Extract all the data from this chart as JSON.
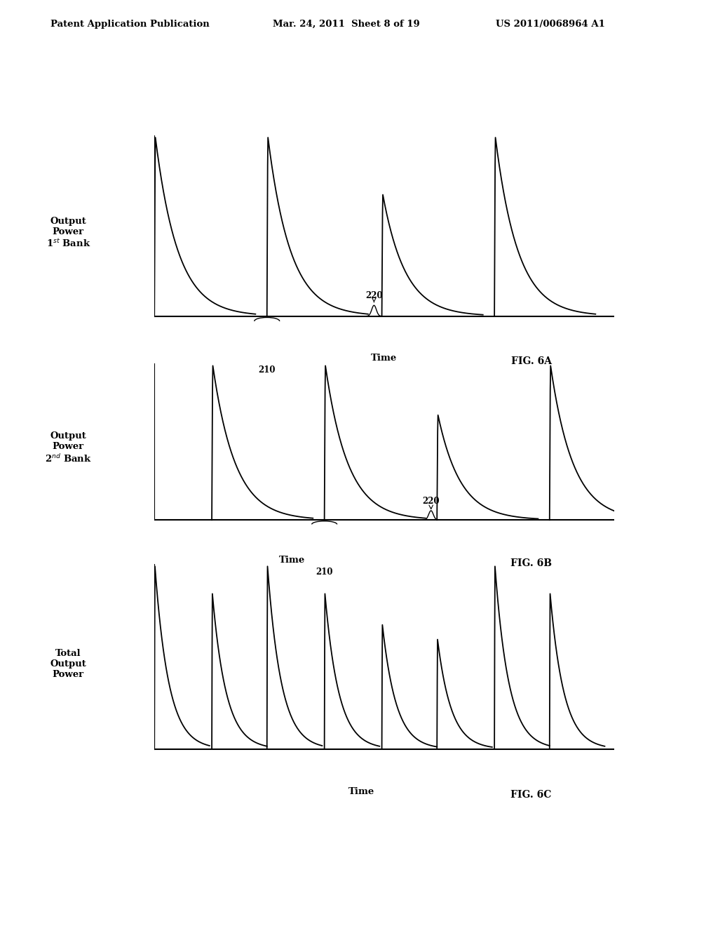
{
  "header_left": "Patent Application Publication",
  "header_mid": "Mar. 24, 2011  Sheet 8 of 19",
  "header_right": "US 2011/0068964 A1",
  "fig6a_ylabel": "Output\nPower\n1ˢᵗ Bank",
  "fig6b_ylabel": "Output\nPower\n2ⁿᵈ Bank",
  "fig6c_ylabel": "Total\nOutput\nPower",
  "fig6a_name": "FIG. 6A",
  "fig6b_name": "FIG. 6B",
  "fig6c_name": "FIG. 6C",
  "time_label": "Time",
  "ann_220": "220",
  "ann_210": "210",
  "bg_color": "#ffffff",
  "line_color": "#000000"
}
